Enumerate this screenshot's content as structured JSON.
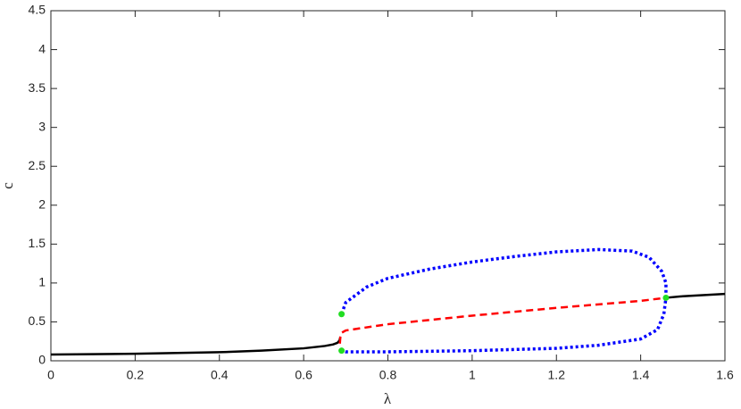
{
  "chart_data": {
    "type": "line",
    "xlabel": "λ",
    "ylabel": "c",
    "xlim": [
      0,
      1.6
    ],
    "ylim": [
      0,
      4.5
    ],
    "xticks": [
      0,
      0.2,
      0.4,
      0.6,
      0.8,
      1,
      1.2,
      1.4,
      1.6
    ],
    "yticks": [
      0,
      0.5,
      1,
      1.5,
      2,
      2.5,
      3,
      3.5,
      4,
      4.5
    ],
    "grid": false,
    "series": [
      {
        "color": "#000000",
        "style": "solid",
        "x": [
          0,
          0.2,
          0.4,
          0.5,
          0.6,
          0.65,
          0.67,
          0.68,
          0.685,
          0.687,
          1.0,
          1.46,
          1.5,
          1.6
        ],
        "values": [
          0.08,
          0.09,
          0.11,
          0.13,
          0.16,
          0.19,
          0.21,
          0.23,
          0.26,
          0.3,
          null,
          0.81,
          0.83,
          0.86
        ]
      },
      {
        "color": "#ff0000",
        "style": "dashed",
        "x": [
          0.686,
          0.687,
          0.69,
          0.7,
          0.8,
          1.0,
          1.2,
          1.4,
          1.46
        ],
        "values": [
          0.22,
          0.3,
          0.36,
          0.39,
          0.47,
          0.58,
          0.68,
          0.77,
          0.81
        ]
      },
      {
        "color": "#0000ff",
        "style": "dotted",
        "x": [
          0.69,
          0.7,
          0.75,
          0.8,
          0.9,
          1.0,
          1.1,
          1.2,
          1.3,
          1.38,
          1.42,
          1.45,
          1.46,
          1.46,
          1.455,
          1.44,
          1.4,
          1.3,
          1.2,
          1.0,
          0.8,
          0.7,
          0.69
        ],
        "values": [
          0.6,
          0.75,
          0.95,
          1.06,
          1.18,
          1.27,
          1.34,
          1.4,
          1.43,
          1.41,
          1.33,
          1.15,
          1.0,
          0.81,
          0.6,
          0.4,
          0.28,
          0.2,
          0.16,
          0.13,
          0.115,
          0.115,
          0.13
        ]
      }
    ],
    "points": {
      "color": "#22dd22",
      "x": [
        0.69,
        0.69,
        1.46
      ],
      "values": [
        0.6,
        0.13,
        0.81
      ]
    }
  }
}
